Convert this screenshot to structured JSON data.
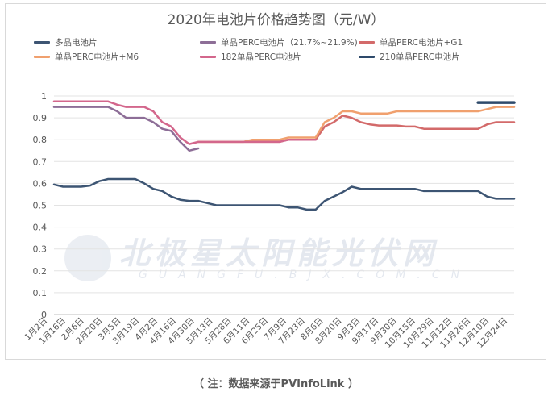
{
  "chart_data": {
    "type": "line",
    "title": "2020年电池片价格趋势图（元/W）",
    "xlabel": "",
    "ylabel": "",
    "ylim": [
      0,
      1
    ],
    "yticks": [
      "0",
      "0.1",
      "0.2",
      "0.3",
      "0.4",
      "0.5",
      "0.6",
      "0.7",
      "0.8",
      "0.9",
      "1"
    ],
    "grid": "horizontal",
    "legend_position": "top",
    "x_tick_labels": [
      "1月2日",
      "1月16日",
      "2月6日",
      "2月20日",
      "3月5日",
      "3月19日",
      "4月2日",
      "4月16日",
      "4月30日",
      "5月13日",
      "5月28日",
      "6月11日",
      "6月25日",
      "7月9日",
      "7月23日",
      "8月6日",
      "8月20日",
      "9月3日",
      "9月17日",
      "9月30日",
      "10月15日",
      "10月29日",
      "11月12日",
      "11月26日",
      "12月10日",
      "12月24日"
    ],
    "x": [
      "1月2日",
      "1月9日",
      "1月16日",
      "1月23日",
      "2月6日",
      "2月13日",
      "2月20日",
      "2月27日",
      "3月5日",
      "3月12日",
      "3月19日",
      "3月26日",
      "4月2日",
      "4月9日",
      "4月16日",
      "4月23日",
      "4月30日",
      "5月6日",
      "5月13日",
      "5月20日",
      "5月28日",
      "6月4日",
      "6月11日",
      "6月18日",
      "6月25日",
      "7月2日",
      "7月9日",
      "7月16日",
      "7月23日",
      "7月30日",
      "8月6日",
      "8月13日",
      "8月20日",
      "8月27日",
      "9月3日",
      "9月10日",
      "9月17日",
      "9月24日",
      "9月30日",
      "10月8日",
      "10月15日",
      "10月22日",
      "10月29日",
      "11月5日",
      "11月12日",
      "11月19日",
      "11月26日",
      "12月3日",
      "12月10日",
      "12月17日",
      "12月24日",
      "12月30日"
    ],
    "series": [
      {
        "name": "多晶电池片",
        "color": "#3d5573",
        "values": [
          0.595,
          0.585,
          0.585,
          0.585,
          0.59,
          0.61,
          0.62,
          0.62,
          0.62,
          0.62,
          0.6,
          0.575,
          0.565,
          0.54,
          0.525,
          0.52,
          0.52,
          0.51,
          0.5,
          0.5,
          0.5,
          0.5,
          0.5,
          0.5,
          0.5,
          0.5,
          0.49,
          0.49,
          0.48,
          0.48,
          0.52,
          0.54,
          0.56,
          0.585,
          0.575,
          0.575,
          0.575,
          0.575,
          0.575,
          0.575,
          0.575,
          0.565,
          0.565,
          0.565,
          0.565,
          0.565,
          0.565,
          0.565,
          0.54,
          0.53,
          0.53,
          0.53
        ]
      },
      {
        "name": "单晶PERC电池片（21.7%~21.9%)",
        "color": "#8d6e97",
        "values": [
          0.95,
          0.95,
          0.95,
          0.95,
          0.95,
          0.95,
          0.95,
          0.93,
          0.9,
          0.9,
          0.9,
          0.88,
          0.85,
          0.84,
          0.79,
          0.75,
          0.76,
          null,
          null,
          null,
          null,
          null,
          null,
          null,
          null,
          null,
          null,
          null,
          null,
          null,
          null,
          null,
          null,
          null,
          null,
          null,
          null,
          null,
          null,
          null,
          null,
          null,
          null,
          null,
          null,
          null,
          null,
          null,
          null,
          null,
          null,
          null
        ]
      },
      {
        "name": "单晶PERC电池片+G1",
        "color": "#d36a6a",
        "values": [
          null,
          null,
          null,
          null,
          null,
          null,
          null,
          null,
          null,
          null,
          null,
          null,
          null,
          null,
          null,
          null,
          0.79,
          0.79,
          0.79,
          0.79,
          0.79,
          0.79,
          0.79,
          0.79,
          0.79,
          0.79,
          0.8,
          0.8,
          0.8,
          0.8,
          0.86,
          0.88,
          0.91,
          0.9,
          0.88,
          0.87,
          0.865,
          0.865,
          0.865,
          0.86,
          0.86,
          0.85,
          0.85,
          0.85,
          0.85,
          0.85,
          0.85,
          0.85,
          0.87,
          0.88,
          0.88,
          0.88
        ]
      },
      {
        "name": "单晶PERC电池片+M6",
        "color": "#f0a06e",
        "values": [
          null,
          null,
          null,
          null,
          null,
          null,
          null,
          null,
          null,
          null,
          null,
          null,
          null,
          null,
          null,
          null,
          0.79,
          0.79,
          0.79,
          0.79,
          0.79,
          0.79,
          0.8,
          0.8,
          0.8,
          0.8,
          0.81,
          0.81,
          0.81,
          0.81,
          0.88,
          0.9,
          0.93,
          0.93,
          0.92,
          0.92,
          0.92,
          0.92,
          0.93,
          0.93,
          0.93,
          0.93,
          0.93,
          0.93,
          0.93,
          0.93,
          0.93,
          0.93,
          0.94,
          0.95,
          0.95,
          0.95
        ]
      },
      {
        "name": "182单晶PERC电池片",
        "color": "#d3678c",
        "values": [
          0.975,
          0.975,
          0.975,
          0.975,
          0.975,
          0.975,
          0.975,
          0.96,
          0.95,
          0.95,
          0.95,
          0.93,
          0.88,
          0.86,
          0.81,
          0.78,
          0.79,
          0.79,
          0.79,
          0.79,
          0.79,
          0.79,
          0.79,
          0.79,
          0.79,
          0.79,
          0.8,
          0.8,
          0.8,
          0.8,
          null,
          null,
          null,
          null,
          null,
          null,
          null,
          null,
          null,
          null,
          null,
          null,
          null,
          null,
          null,
          null,
          null,
          null,
          null,
          null,
          null,
          null
        ]
      },
      {
        "name": "210单晶PERC电池片",
        "color": "#2e4a6b",
        "values": [
          null,
          null,
          null,
          null,
          null,
          null,
          null,
          null,
          null,
          null,
          null,
          null,
          null,
          null,
          null,
          null,
          null,
          null,
          null,
          null,
          null,
          null,
          null,
          null,
          null,
          null,
          null,
          null,
          null,
          null,
          null,
          null,
          null,
          null,
          null,
          null,
          null,
          null,
          null,
          null,
          null,
          null,
          null,
          null,
          null,
          null,
          null,
          0.97,
          0.97,
          0.97,
          0.97,
          0.97
        ]
      }
    ]
  },
  "watermark": {
    "main": "北极星太阳能光伏网",
    "sub": "GUANGFU.BJX.COM.CN"
  },
  "footnote": "（ 注：数据来源于PVInfoLink ）"
}
